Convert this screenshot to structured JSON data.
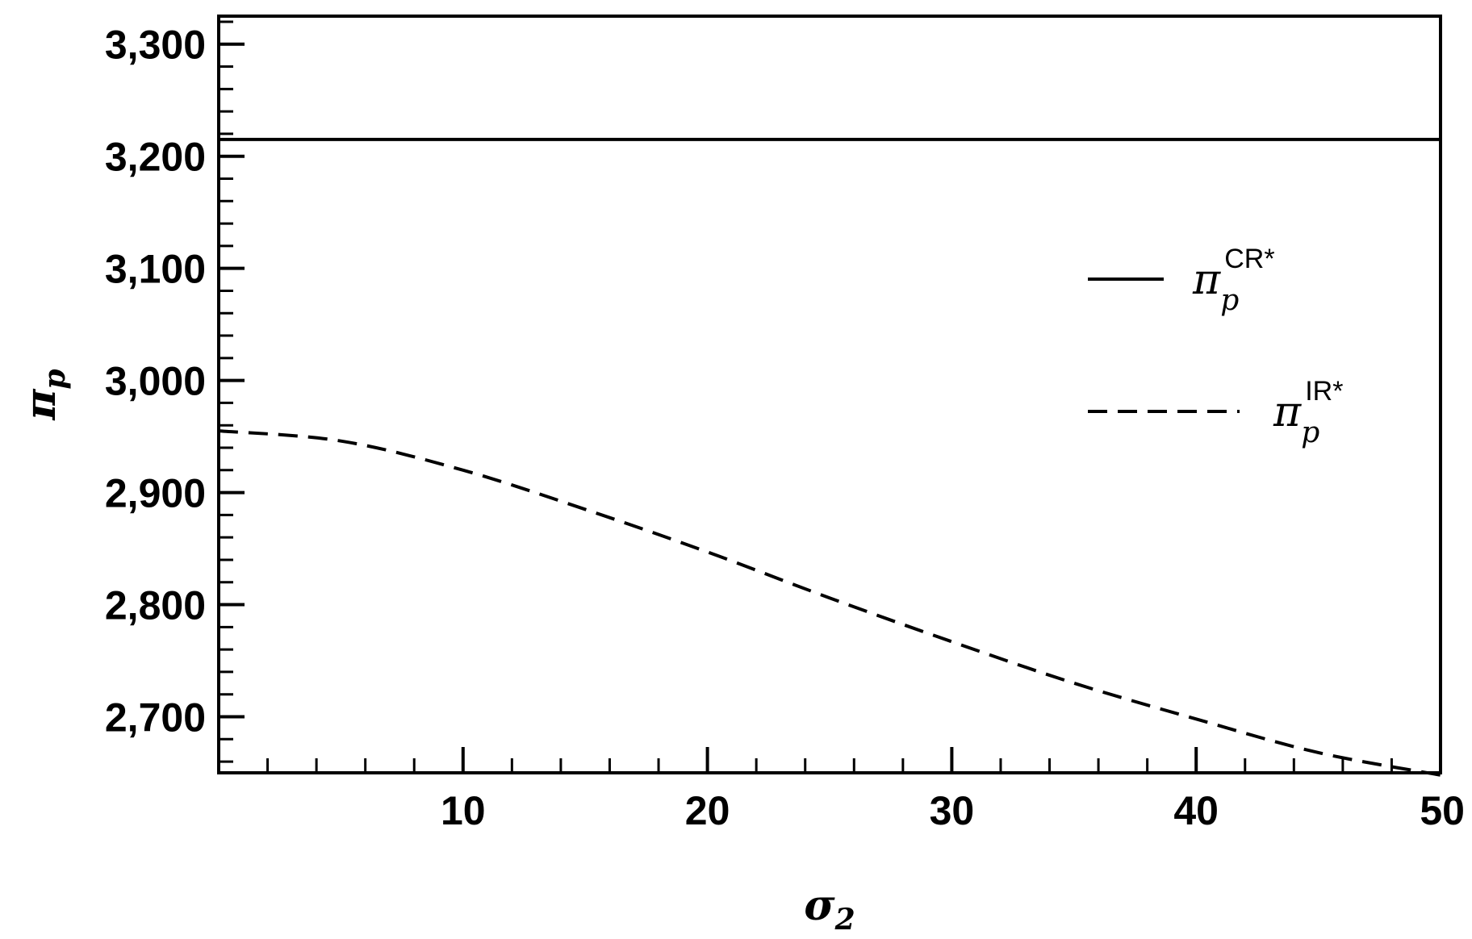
{
  "chart_data": {
    "type": "line",
    "title": "",
    "xlabel": {
      "symbol": "σ",
      "subscript": "2"
    },
    "ylabel": {
      "symbol": "π",
      "subscript": "p"
    },
    "xlim": [
      0,
      50
    ],
    "ylim": [
      2650,
      3325
    ],
    "x_ticks": [
      10,
      20,
      30,
      40,
      50
    ],
    "x_tick_labels": [
      "10",
      "20",
      "30",
      "40",
      "50"
    ],
    "y_ticks": [
      2700,
      2800,
      2900,
      3000,
      3100,
      3200,
      3300
    ],
    "y_tick_labels": [
      "2,700",
      "2,800",
      "2,900",
      "3,000",
      "3,100",
      "3,200",
      "3,300"
    ],
    "grid": false,
    "legend_position": "right",
    "series": [
      {
        "symbol": "π",
        "subscript": "p",
        "superscript": "CR*",
        "style": "solid",
        "color": "#000000",
        "x": [
          0,
          50
        ],
        "y": [
          3215,
          3215
        ]
      },
      {
        "symbol": "π",
        "subscript": "p",
        "superscript": "IR*",
        "style": "dashed",
        "color": "#000000",
        "x": [
          0,
          5,
          10,
          15,
          20,
          25,
          30,
          35,
          40,
          45,
          50
        ],
        "y": [
          2955,
          2946,
          2920,
          2885,
          2847,
          2806,
          2767,
          2730,
          2698,
          2668,
          2648
        ]
      }
    ]
  }
}
